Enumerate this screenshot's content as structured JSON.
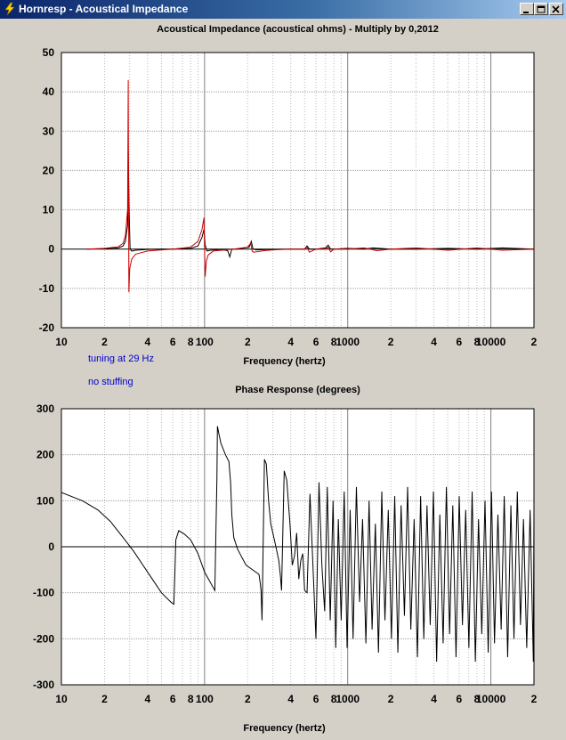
{
  "window": {
    "title": "Hornresp - Acoustical Impedance",
    "buttons": [
      "minimize",
      "maximize",
      "close"
    ]
  },
  "notes": {
    "tuning": "tuning at 29 Hz",
    "stuffing": "no stuffing"
  },
  "colors": {
    "background": "#d4d0c8",
    "plot_background": "#ffffff",
    "grid": "#a0a0a0",
    "series_black": "#000000",
    "series_red": "#d00000",
    "title_bar": "#0a246a",
    "note_text": "#0000cc"
  },
  "chart_data": [
    {
      "type": "line",
      "title": "Acoustical Impedance (acoustical ohms) - Multiply by 0,2012",
      "xlabel": "Frequency (hertz)",
      "ylabel": "",
      "x_scale": "log",
      "xlim": [
        10,
        20000
      ],
      "ylim": [
        -20,
        50
      ],
      "y_ticks": [
        50,
        40,
        30,
        20,
        10,
        0,
        -10,
        -20
      ],
      "x_tick_labels": [
        {
          "x": 10,
          "label": "10"
        },
        {
          "x": 20,
          "label": "2"
        },
        {
          "x": 40,
          "label": "4"
        },
        {
          "x": 60,
          "label": "6"
        },
        {
          "x": 80,
          "label": "8"
        },
        {
          "x": 100,
          "label": "100"
        },
        {
          "x": 200,
          "label": "2"
        },
        {
          "x": 400,
          "label": "4"
        },
        {
          "x": 600,
          "label": "6"
        },
        {
          "x": 800,
          "label": "8"
        },
        {
          "x": 1000,
          "label": "1000"
        },
        {
          "x": 2000,
          "label": "2"
        },
        {
          "x": 4000,
          "label": "4"
        },
        {
          "x": 6000,
          "label": "6"
        },
        {
          "x": 8000,
          "label": "8"
        },
        {
          "x": 10000,
          "label": "10000"
        },
        {
          "x": 20000,
          "label": "2"
        }
      ],
      "grid": true,
      "series": [
        {
          "color": "#000000",
          "x": [
            15,
            20,
            25,
            27,
            28,
            29,
            29.3,
            29.7,
            30.2,
            31,
            33,
            40,
            50,
            60,
            80,
            90,
            96,
            99,
            101,
            104,
            110,
            130,
            145,
            150,
            155,
            170,
            205,
            212,
            218,
            230,
            280,
            400,
            500,
            520,
            540,
            600,
            700,
            730,
            760,
            800,
            1000,
            1300,
            1500,
            2000,
            3000,
            5000,
            8000,
            12000,
            20000
          ],
          "y": [
            0,
            0.1,
            0.3,
            0.8,
            2,
            6,
            25,
            10,
            0,
            -0.5,
            -0.3,
            -0.1,
            0,
            0,
            0.2,
            0.8,
            3,
            5,
            1,
            -0.5,
            -0.3,
            -0.1,
            -0.4,
            -2,
            0,
            0,
            0.5,
            2,
            0,
            -0.2,
            -0.1,
            0,
            0,
            0.8,
            0,
            0,
            0.3,
            1,
            0,
            0,
            0.2,
            0,
            0.3,
            0,
            0,
            0.2,
            0,
            0.3,
            0
          ]
        },
        {
          "color": "#d00000",
          "x": [
            15,
            20,
            25,
            27,
            28,
            29,
            29.3,
            29.6,
            30,
            31,
            33,
            40,
            50,
            60,
            80,
            90,
            96,
            99,
            101,
            103,
            106,
            115,
            140,
            160,
            200,
            210,
            215,
            220,
            260,
            300,
            400,
            500,
            520,
            540,
            600,
            700,
            730,
            760,
            800,
            1000,
            1300,
            1600,
            2000,
            3000,
            5000,
            8000,
            12000,
            20000
          ],
          "y": [
            0,
            0.2,
            0.6,
            1.5,
            3.5,
            10,
            43,
            -11,
            -5,
            -2.5,
            -1.3,
            -0.5,
            -0.2,
            0,
            0.5,
            2,
            5,
            8,
            -7,
            -3,
            -1.5,
            -0.5,
            -0.2,
            0,
            0.5,
            1.5,
            -0.5,
            -0.8,
            -0.4,
            -0.2,
            0,
            0,
            0.5,
            -0.8,
            0,
            0,
            0.5,
            -0.7,
            0,
            0,
            0.3,
            -0.4,
            0,
            0.3,
            -0.3,
            0.3,
            -0.3,
            0
          ]
        }
      ]
    },
    {
      "type": "line",
      "title": "Phase Response (degrees)",
      "xlabel": "Frequency (hertz)",
      "ylabel": "",
      "x_scale": "log",
      "xlim": [
        10,
        20000
      ],
      "ylim": [
        -300,
        300
      ],
      "y_ticks": [
        300,
        200,
        100,
        0,
        -100,
        -200,
        -300
      ],
      "x_tick_labels": [
        {
          "x": 10,
          "label": "10"
        },
        {
          "x": 20,
          "label": "2"
        },
        {
          "x": 40,
          "label": "4"
        },
        {
          "x": 60,
          "label": "6"
        },
        {
          "x": 80,
          "label": "8"
        },
        {
          "x": 100,
          "label": "100"
        },
        {
          "x": 200,
          "label": "2"
        },
        {
          "x": 400,
          "label": "4"
        },
        {
          "x": 600,
          "label": "6"
        },
        {
          "x": 800,
          "label": "8"
        },
        {
          "x": 1000,
          "label": "1000"
        },
        {
          "x": 2000,
          "label": "2"
        },
        {
          "x": 4000,
          "label": "4"
        },
        {
          "x": 6000,
          "label": "6"
        },
        {
          "x": 8000,
          "label": "8"
        },
        {
          "x": 10000,
          "label": "10000"
        },
        {
          "x": 20000,
          "label": "2"
        }
      ],
      "grid": true,
      "series": [
        {
          "color": "#000000",
          "x": [
            10,
            14,
            18,
            22,
            27,
            32,
            40,
            50,
            58,
            61,
            62,
            63,
            66,
            72,
            80,
            90,
            100,
            118,
            122,
            123,
            126,
            130,
            140,
            148,
            152,
            155,
            160,
            170,
            180,
            195,
            240,
            245,
            248,
            252,
            262,
            270,
            280,
            290,
            300,
            315,
            325,
            330,
            338,
            345,
            360,
            375,
            395,
            410,
            425,
            440,
            455,
            470,
            485,
            500,
            520,
            545,
            575,
            600,
            630,
            660,
            690,
            720,
            755,
            790,
            825,
            860,
            900,
            945,
            990,
            1040,
            1090,
            1150,
            1210,
            1270,
            1340,
            1410,
            1480,
            1560,
            1640,
            1730,
            1820,
            1920,
            2020,
            2130,
            2240,
            2360,
            2490,
            2620,
            2760,
            2910,
            3070,
            3230,
            3400,
            3580,
            3770,
            3970,
            4180,
            4400,
            4640,
            4890,
            5150,
            5420,
            5710,
            6010,
            6330,
            6670,
            7020,
            7400,
            7790,
            8200,
            8640,
            9100,
            9580,
            10100,
            10600,
            11200,
            11800,
            12400,
            13100,
            13800,
            14500,
            15300,
            16100,
            16900,
            17800,
            18800,
            19800,
            20000
          ],
          "y": [
            118,
            100,
            80,
            55,
            20,
            -10,
            -55,
            -100,
            -120,
            -125,
            -60,
            15,
            35,
            28,
            15,
            -15,
            -55,
            -95,
            150,
            262,
            245,
            225,
            200,
            185,
            140,
            70,
            20,
            -5,
            -20,
            -40,
            -60,
            -80,
            -95,
            -160,
            190,
            180,
            100,
            50,
            30,
            0,
            -20,
            -30,
            -60,
            -95,
            165,
            145,
            50,
            -40,
            -20,
            30,
            -70,
            -30,
            -15,
            -95,
            -100,
            115,
            -60,
            -200,
            140,
            -40,
            -140,
            130,
            -160,
            100,
            -220,
            60,
            -160,
            120,
            -220,
            80,
            -200,
            130,
            -120,
            60,
            -210,
            100,
            -180,
            50,
            -230,
            120,
            -160,
            80,
            -200,
            110,
            -230,
            90,
            -150,
            130,
            -180,
            60,
            -240,
            110,
            -200,
            90,
            -170,
            120,
            -250,
            70,
            -210,
            130,
            -190,
            90,
            -240,
            110,
            -170,
            80,
            -220,
            120,
            -250,
            60,
            -190,
            100,
            -230,
            120,
            -210,
            70,
            -180,
            110,
            -240,
            90,
            -200,
            120,
            -170,
            60,
            -220,
            80,
            -250,
            80
          ]
        }
      ]
    }
  ]
}
